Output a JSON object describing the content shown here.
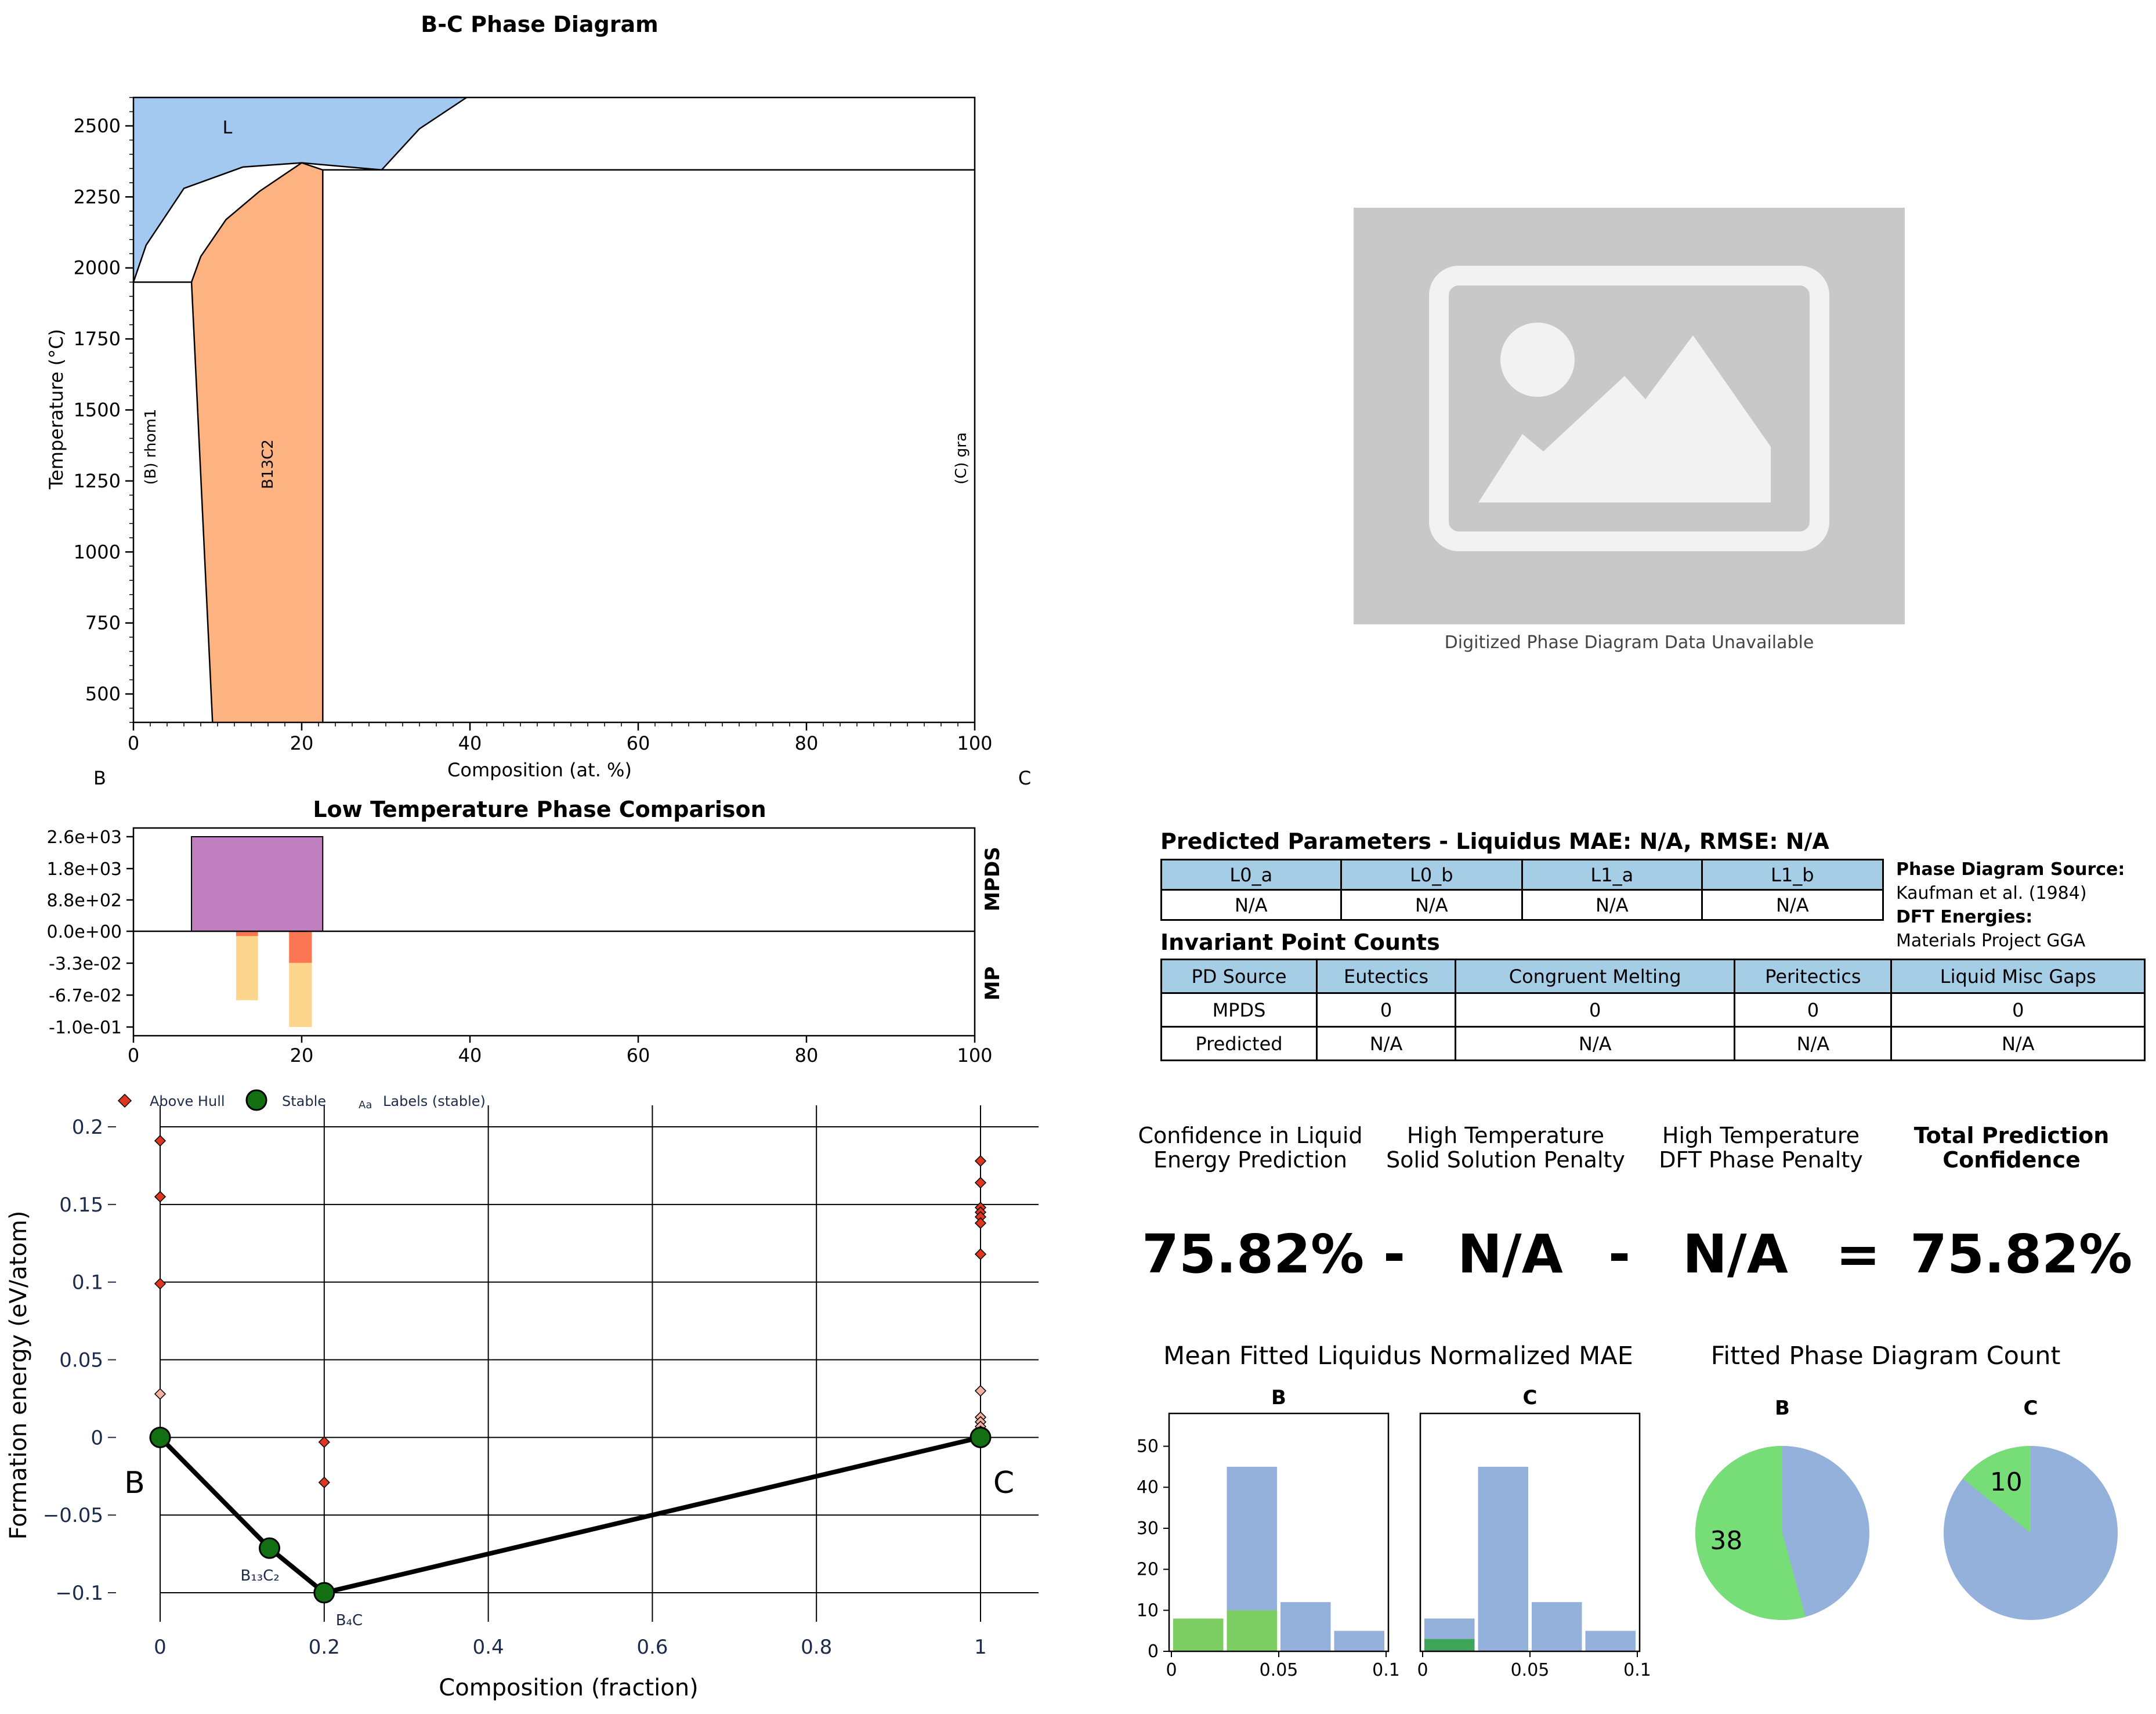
{
  "phase_diagram": {
    "title": "B-C Phase Diagram",
    "xlabel": "Composition (at. %)",
    "ylabel": "Temperature (°C)",
    "left_element": "B",
    "right_element": "C",
    "region_labels": {
      "liquid": "L",
      "b_end": "(B) rhom1",
      "b13c2": "B13C2",
      "c_end": "(C) gra"
    }
  },
  "placeholder": {
    "caption": "Digitized Phase Diagram Data Unavailable"
  },
  "low_temp": {
    "title": "Low Temperature Phase Comparison",
    "label_top": "MPDS",
    "label_bottom": "MP"
  },
  "hull": {
    "legend": {
      "above": "Above Hull",
      "stable": "Stable",
      "labels": "Labels (stable)",
      "labels_glyph": "Aa"
    },
    "xlabel": "Composition (fraction)",
    "ylabel": "Formation energy (eV/atom)",
    "left_element": "B",
    "right_element": "C"
  },
  "params": {
    "title": "Predicted Parameters - Liquidus MAE: N/A, RMSE: N/A",
    "headers": [
      "L0_a",
      "L0_b",
      "L1_a",
      "L1_b"
    ],
    "values": [
      "N/A",
      "N/A",
      "N/A",
      "N/A"
    ]
  },
  "source": {
    "pd_label": "Phase Diagram Source:",
    "pd_value": "Kaufman et al. (1984)",
    "dft_label": "DFT Energies:",
    "dft_value": "Materials Project GGA"
  },
  "invariants": {
    "title": "Invariant Point Counts",
    "headers": [
      "PD Source",
      "Eutectics",
      "Congruent Melting",
      "Peritectics",
      "Liquid Misc Gaps"
    ],
    "rows": [
      [
        "MPDS",
        "0",
        "0",
        "0",
        "0"
      ],
      [
        "Predicted",
        "N/A",
        "N/A",
        "N/A",
        "N/A"
      ]
    ]
  },
  "confidence": {
    "label1": [
      "Confidence in Liquid",
      "Energy Prediction"
    ],
    "label2": [
      "High Temperature",
      "Solid Solution Penalty"
    ],
    "label3": [
      "High Temperature",
      "DFT Phase Penalty"
    ],
    "label4": [
      "Total Prediction",
      "Confidence"
    ],
    "value1": "75.82%",
    "op1": "-",
    "value2": "N/A",
    "op2": "-",
    "value3": "N/A",
    "op3": "=",
    "value4": "75.82%"
  },
  "mae_title": "Mean Fitted Liquidus Normalized MAE",
  "count_title": "Fitted Phase Diagram Count",
  "colors": {
    "liquid": "#a3c9f1",
    "b13c2": "#fdb282",
    "mpds_bar": "#c080c0",
    "mp_bar1": "#fdd080",
    "mp_bar2": "#fd6b4e",
    "above_hull": "#e0351f",
    "stable": "#127012",
    "hist_blue": "#93b1db",
    "hist_green": "#7dcf63",
    "hist_dkgreen": "#3ea55a",
    "pie_green": "#77dd77",
    "pie_blue": "#93b1db"
  },
  "chart_data": [
    {
      "type": "area",
      "name": "phase_diagram",
      "xlim": [
        0,
        100
      ],
      "ylim": [
        400,
        2600
      ],
      "xticks": [
        0,
        20,
        40,
        60,
        80,
        100
      ],
      "yticks": [
        500,
        750,
        1000,
        1250,
        1500,
        1750,
        2000,
        2250,
        2500
      ],
      "regions": {
        "liquid": [
          [
            0,
            1950
          ],
          [
            0,
            2600
          ],
          [
            39.6,
            2600
          ],
          [
            34,
            2490
          ],
          [
            29.5,
            2345
          ],
          [
            20,
            2370
          ],
          [
            13,
            2355
          ],
          [
            6,
            2280
          ],
          [
            1.5,
            2080
          ],
          [
            0,
            1950
          ]
        ],
        "b13c2": [
          [
            6.9,
            1950
          ],
          [
            8,
            2040
          ],
          [
            11,
            2170
          ],
          [
            15,
            2270
          ],
          [
            20,
            2370
          ],
          [
            22.5,
            2345
          ],
          [
            22.5,
            400
          ],
          [
            9.4,
            400
          ],
          [
            6.9,
            1950
          ]
        ],
        "boundaries": [
          [
            [
              0,
              1950
            ],
            [
              6.9,
              1950
            ]
          ],
          [
            [
              22.5,
              2345
            ],
            [
              100,
              2345
            ]
          ],
          [
            [
              22.5,
              2345
            ],
            [
              22.5,
              400
            ]
          ],
          [
            [
              6.9,
              1950
            ],
            [
              9.4,
              400
            ]
          ],
          [
            [
              6.9,
              1950
            ],
            [
              8,
              2040
            ],
            [
              11,
              2170
            ],
            [
              15,
              2270
            ],
            [
              20,
              2370
            ],
            [
              22.5,
              2345
            ]
          ],
          [
            [
              0,
              1950
            ],
            [
              1.5,
              2080
            ],
            [
              6,
              2280
            ],
            [
              13,
              2355
            ],
            [
              20,
              2370
            ],
            [
              29.5,
              2345
            ]
          ],
          [
            [
              29.5,
              2345
            ],
            [
              34,
              2490
            ],
            [
              39.6,
              2600
            ]
          ]
        ]
      }
    },
    {
      "type": "bar",
      "name": "low_temp_comparison",
      "xlim": [
        0,
        100
      ],
      "xticks": [
        0,
        20,
        40,
        60,
        80,
        100
      ],
      "yticks_top": [
        "2.6e+03",
        "1.8e+03",
        "8.8e+02",
        "0.0e+00"
      ],
      "yticks_bottom": [
        "-3.3e-02",
        "-6.7e-02",
        "-1.0e-01"
      ],
      "mpds": [
        {
          "x0": 6.9,
          "x1": 22.5,
          "value": 2600
        }
      ],
      "mp": [
        {
          "x0": 12.2,
          "x1": 14.8,
          "value": -0.072,
          "top_value": -0.005
        },
        {
          "x0": 18.5,
          "x1": 21.2,
          "value": -0.1,
          "top_value": -0.033
        }
      ]
    },
    {
      "type": "scatter",
      "name": "convex_hull",
      "xlim": [
        -0.035,
        1.07
      ],
      "ylim": [
        -0.135,
        0.21
      ],
      "xticks": [
        "0",
        "0.2",
        "0.4",
        "0.6",
        "0.8",
        "1"
      ],
      "yticks": [
        "0.2",
        "0.15",
        "0.1",
        "0.05",
        "0",
        "−0.05",
        "−0.1"
      ],
      "hull_line": [
        [
          0,
          0
        ],
        [
          0.1333,
          -0.0713
        ],
        [
          0.2,
          -0.1
        ],
        [
          1,
          0
        ]
      ],
      "stable": [
        {
          "x": 0,
          "y": 0,
          "label": ""
        },
        {
          "x": 0.1333,
          "y": -0.0713,
          "label": "B₁₃C₂"
        },
        {
          "x": 0.2,
          "y": -0.1,
          "label": "B₄C"
        },
        {
          "x": 1,
          "y": 0,
          "label": ""
        }
      ],
      "above_hull": [
        {
          "x": 0,
          "y": 0.191
        },
        {
          "x": 0,
          "y": 0.155
        },
        {
          "x": 0,
          "y": 0.099
        },
        {
          "x": 0,
          "y": 0.028
        },
        {
          "x": 0.2,
          "y": -0.003
        },
        {
          "x": 0.2,
          "y": -0.029
        },
        {
          "x": 1,
          "y": 0.178
        },
        {
          "x": 1,
          "y": 0.164
        },
        {
          "x": 1,
          "y": 0.148
        },
        {
          "x": 1,
          "y": 0.145
        },
        {
          "x": 1,
          "y": 0.142
        },
        {
          "x": 1,
          "y": 0.138
        },
        {
          "x": 1,
          "y": 0.118
        },
        {
          "x": 1,
          "y": 0.03
        },
        {
          "x": 1,
          "y": 0.013
        },
        {
          "x": 1,
          "y": 0.01
        },
        {
          "x": 1,
          "y": 0.007
        },
        {
          "x": 1,
          "y": 0.004
        }
      ]
    },
    {
      "type": "bar",
      "name": "mae_histograms",
      "ylim": [
        0,
        58
      ],
      "yticks": [
        0,
        10,
        20,
        30,
        40,
        50
      ],
      "xticks": [
        "0",
        "0.05",
        "0.1"
      ],
      "panels": [
        {
          "title": "B",
          "bins": [
            [
              0,
              0.025
            ],
            [
              0.025,
              0.05
            ],
            [
              0.05,
              0.075
            ],
            [
              0.075,
              0.1
            ]
          ],
          "all": [
            0,
            45,
            12,
            5
          ],
          "fitted": [
            8,
            10,
            0,
            0
          ]
        },
        {
          "title": "C",
          "bins": [
            [
              0,
              0.025
            ],
            [
              0.025,
              0.05
            ],
            [
              0.05,
              0.075
            ],
            [
              0.075,
              0.1
            ]
          ],
          "all": [
            8,
            45,
            12,
            5
          ],
          "fitted": [
            3,
            0,
            0,
            0
          ]
        }
      ]
    },
    {
      "type": "pie",
      "name": "fitted_counts",
      "panels": [
        {
          "title": "B",
          "fitted": 38,
          "total": 70
        },
        {
          "title": "C",
          "fitted": 10,
          "total": 70
        }
      ]
    }
  ]
}
